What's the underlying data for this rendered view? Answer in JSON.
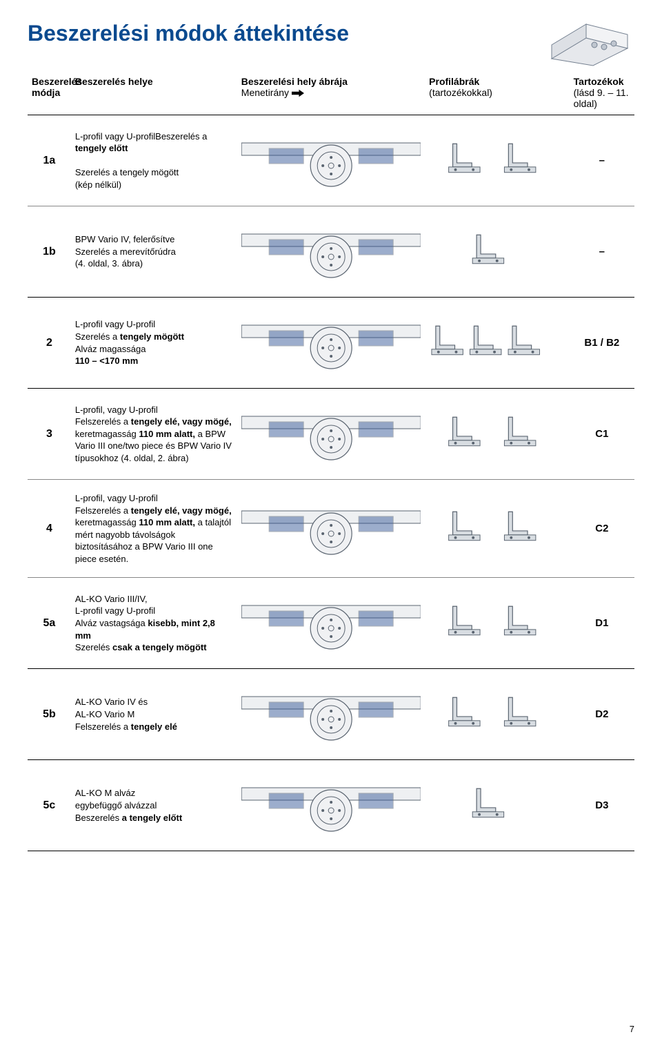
{
  "page": {
    "title": "Beszerelési módok áttekintése",
    "page_number": "7"
  },
  "headers": {
    "mode": "Beszerelés módja",
    "place": "Beszerelés helye",
    "diagram": "Beszerelési hely ábrája",
    "diagram_sub": "Menetirány",
    "profiles": "Profilábrák",
    "profiles_sub": "(tartozékokkal)",
    "accessories": "Tartozékok",
    "accessories_sub": "(lásd 9. – 11. oldal)"
  },
  "rows": [
    {
      "id": "1a",
      "body": [
        [
          "",
          "L-profil vagy U-profil"
        ],
        [
          "",
          "Beszerelés a "
        ],
        [
          "b",
          "tengely előtt"
        ],
        [
          "br",
          ""
        ],
        [
          "",
          "Szerelés a tengely mögött"
        ],
        [
          "nl",
          ""
        ],
        [
          "",
          "(kép nélkül)"
        ]
      ],
      "profile_count": 2,
      "accessory": "–",
      "diagram_bg": "#eef0f2",
      "sep": "hairline"
    },
    {
      "id": "1b",
      "body": [
        [
          "",
          "BPW Vario IV, felerősítve"
        ],
        [
          "nl",
          ""
        ],
        [
          "",
          "Szerelés a merevítőrúdra"
        ],
        [
          "nl",
          ""
        ],
        [
          "",
          "(4. oldal, 3. ábra)"
        ]
      ],
      "profile_count": 1,
      "accessory": "–",
      "diagram_bg": "#eef0f2",
      "sep": "full"
    },
    {
      "id": "2",
      "body": [
        [
          "",
          "L-profil vagy U-profil"
        ],
        [
          "nl",
          ""
        ],
        [
          "",
          "Szerelés a "
        ],
        [
          "b",
          "tengely mögött"
        ],
        [
          "nl",
          ""
        ],
        [
          "",
          "Alváz magassága"
        ],
        [
          "nl",
          ""
        ],
        [
          "b",
          "110 – <170 mm"
        ]
      ],
      "profile_count": 3,
      "accessory": "B1 / B2",
      "diagram_bg": "#eef0f2",
      "sep": "full"
    },
    {
      "id": "3",
      "body": [
        [
          "",
          "L-profil, vagy U-profil"
        ],
        [
          "nl",
          ""
        ],
        [
          "",
          "Felszerelés a "
        ],
        [
          "b",
          "tengely elé, vagy mögé,"
        ],
        [
          "",
          " keretmagasság "
        ],
        [
          "b",
          "110 mm alatt,"
        ],
        [
          "",
          " a BPW Vario III one/two piece és BPW Vario IV típusokhoz (4. oldal, 2. ábra)"
        ]
      ],
      "profile_count": 2,
      "accessory": "C1",
      "diagram_bg": "#eef0f2",
      "sep": "hairline"
    },
    {
      "id": "4",
      "body": [
        [
          "",
          "L-profil, vagy U-profil"
        ],
        [
          "nl",
          ""
        ],
        [
          "",
          "Felszerelés a "
        ],
        [
          "b",
          "tengely elé, vagy mögé,"
        ],
        [
          "",
          " keretmagasság "
        ],
        [
          "b",
          "110 mm alatt,"
        ],
        [
          "",
          " a talajtól mért nagyobb távolságok biztosításához a BPW Vario III one piece esetén."
        ]
      ],
      "profile_count": 2,
      "accessory": "C2",
      "diagram_bg": "#eef0f2",
      "sep": "hairline"
    },
    {
      "id": "5a",
      "body": [
        [
          "",
          "AL-KO Vario III/IV,"
        ],
        [
          "nl",
          ""
        ],
        [
          "",
          "L-profil vagy U-profil"
        ],
        [
          "nl",
          ""
        ],
        [
          "",
          "Alváz vastagsága "
        ],
        [
          "b",
          "kisebb, mint 2,8 mm"
        ],
        [
          "nl",
          ""
        ],
        [
          "",
          "Szerelés "
        ],
        [
          "b",
          "csak a tengely mögött"
        ]
      ],
      "profile_count": 2,
      "accessory": "D1",
      "diagram_bg": "#eef0f2",
      "sep": "full"
    },
    {
      "id": "5b",
      "body": [
        [
          "",
          "AL-KO Vario IV és"
        ],
        [
          "nl",
          ""
        ],
        [
          "",
          "AL-KO Vario M"
        ],
        [
          "nl",
          ""
        ],
        [
          "",
          "Felszerelés a "
        ],
        [
          "b",
          "tengely elé"
        ]
      ],
      "profile_count": 2,
      "accessory": "D2",
      "diagram_bg": "#eef0f2",
      "sep": "full"
    },
    {
      "id": "5c",
      "body": [
        [
          "",
          "AL-KO M alváz"
        ],
        [
          "nl",
          ""
        ],
        [
          "",
          "egybefüggő alvázzal"
        ],
        [
          "nl",
          ""
        ],
        [
          "",
          "Beszerelés "
        ],
        [
          "b",
          "a tengely előtt"
        ]
      ],
      "profile_count": 1,
      "accessory": "D3",
      "diagram_bg": "#eef0f2",
      "sep": "full"
    }
  ],
  "colors": {
    "title": "#0b4a8f",
    "rule": "#000000",
    "hairline": "#888888",
    "diag_stroke": "#5a6470",
    "diag_fill": "#d8dde2",
    "diag_accent": "#3b5d9a",
    "profile_stroke": "#5a6470",
    "profile_fill": "#d8dde2"
  }
}
